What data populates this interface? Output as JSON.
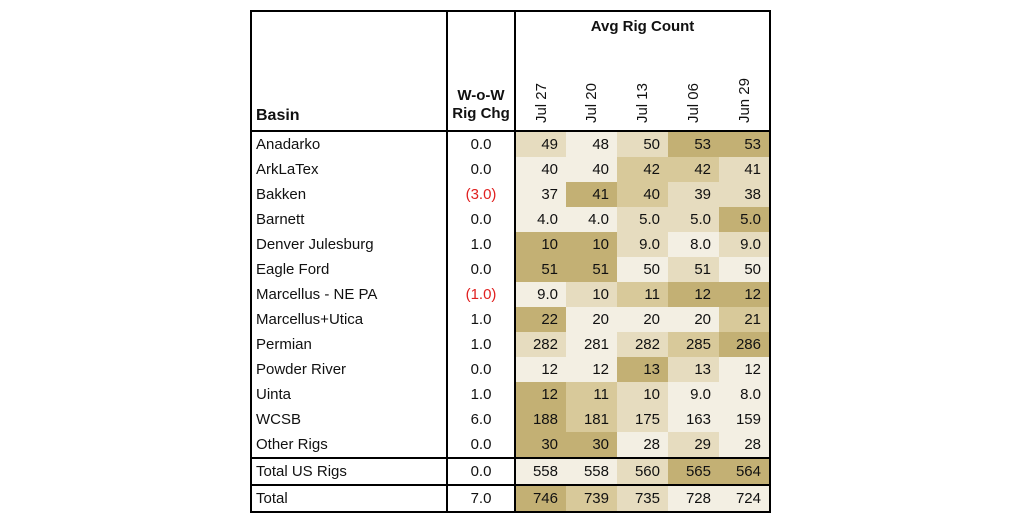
{
  "chart_data": {
    "type": "table",
    "header": {
      "basin": "Basin",
      "change_line1": "W-o-W",
      "change_line2": "Rig Chg",
      "group": "Avg Rig Count"
    },
    "columns": [
      "Jul 27",
      "Jul 20",
      "Jul 13",
      "Jul 06",
      "Jun 29"
    ],
    "rows": [
      {
        "basin": "Anadarko",
        "change": "0.0",
        "values": [
          "49",
          "48",
          "50",
          "53",
          "53"
        ],
        "shades": [
          1,
          0,
          1,
          3,
          3
        ]
      },
      {
        "basin": "ArkLaTex",
        "change": "0.0",
        "values": [
          "40",
          "40",
          "42",
          "42",
          "41"
        ],
        "shades": [
          0,
          0,
          2,
          2,
          1
        ]
      },
      {
        "basin": "Bakken",
        "change": "(3.0)",
        "negative": true,
        "values": [
          "37",
          "41",
          "40",
          "39",
          "38"
        ],
        "shades": [
          0,
          3,
          2,
          1,
          1
        ]
      },
      {
        "basin": "Barnett",
        "change": "0.0",
        "values": [
          "4.0",
          "4.0",
          "5.0",
          "5.0",
          "5.0"
        ],
        "shades": [
          0,
          0,
          1,
          1,
          3
        ]
      },
      {
        "basin": "Denver Julesburg",
        "change": "1.0",
        "values": [
          "10",
          "10",
          "9.0",
          "8.0",
          "9.0"
        ],
        "shades": [
          3,
          3,
          1,
          0,
          1
        ]
      },
      {
        "basin": "Eagle Ford",
        "change": "0.0",
        "values": [
          "51",
          "51",
          "50",
          "51",
          "50"
        ],
        "shades": [
          3,
          3,
          0,
          1,
          0
        ]
      },
      {
        "basin": "Marcellus - NE PA",
        "change": "(1.0)",
        "negative": true,
        "values": [
          "9.0",
          "10",
          "11",
          "12",
          "12"
        ],
        "shades": [
          0,
          1,
          2,
          3,
          3
        ]
      },
      {
        "basin": "Marcellus+Utica",
        "change": "1.0",
        "values": [
          "22",
          "20",
          "20",
          "20",
          "21"
        ],
        "shades": [
          3,
          0,
          0,
          0,
          2
        ]
      },
      {
        "basin": "Permian",
        "change": "1.0",
        "values": [
          "282",
          "281",
          "282",
          "285",
          "286"
        ],
        "shades": [
          1,
          0,
          1,
          2,
          3
        ]
      },
      {
        "basin": "Powder River",
        "change": "0.0",
        "values": [
          "12",
          "12",
          "13",
          "13",
          "12"
        ],
        "shades": [
          0,
          0,
          3,
          1,
          0
        ]
      },
      {
        "basin": "Uinta",
        "change": "1.0",
        "values": [
          "12",
          "11",
          "10",
          "9.0",
          "8.0"
        ],
        "shades": [
          3,
          2,
          1,
          0,
          0
        ]
      },
      {
        "basin": "WCSB",
        "change": "6.0",
        "values": [
          "188",
          "181",
          "175",
          "163",
          "159"
        ],
        "shades": [
          3,
          2,
          1,
          0,
          0
        ]
      },
      {
        "basin": "Other Rigs",
        "change": "0.0",
        "values": [
          "30",
          "30",
          "28",
          "29",
          "28"
        ],
        "shades": [
          3,
          3,
          0,
          1,
          0
        ]
      }
    ],
    "totals": [
      {
        "basin": "Total US Rigs",
        "change": "0.0",
        "values": [
          "558",
          "558",
          "560",
          "565",
          "564"
        ],
        "shades": [
          0,
          0,
          1,
          3,
          3
        ]
      },
      {
        "basin": "Total",
        "change": "7.0",
        "values": [
          "746",
          "739",
          "735",
          "728",
          "724"
        ],
        "shades": [
          3,
          2,
          1,
          0,
          0
        ]
      }
    ],
    "shade_colors": [
      "#f3efe3",
      "#e6dcbf",
      "#d8c99a",
      "#c3b074"
    ]
  }
}
